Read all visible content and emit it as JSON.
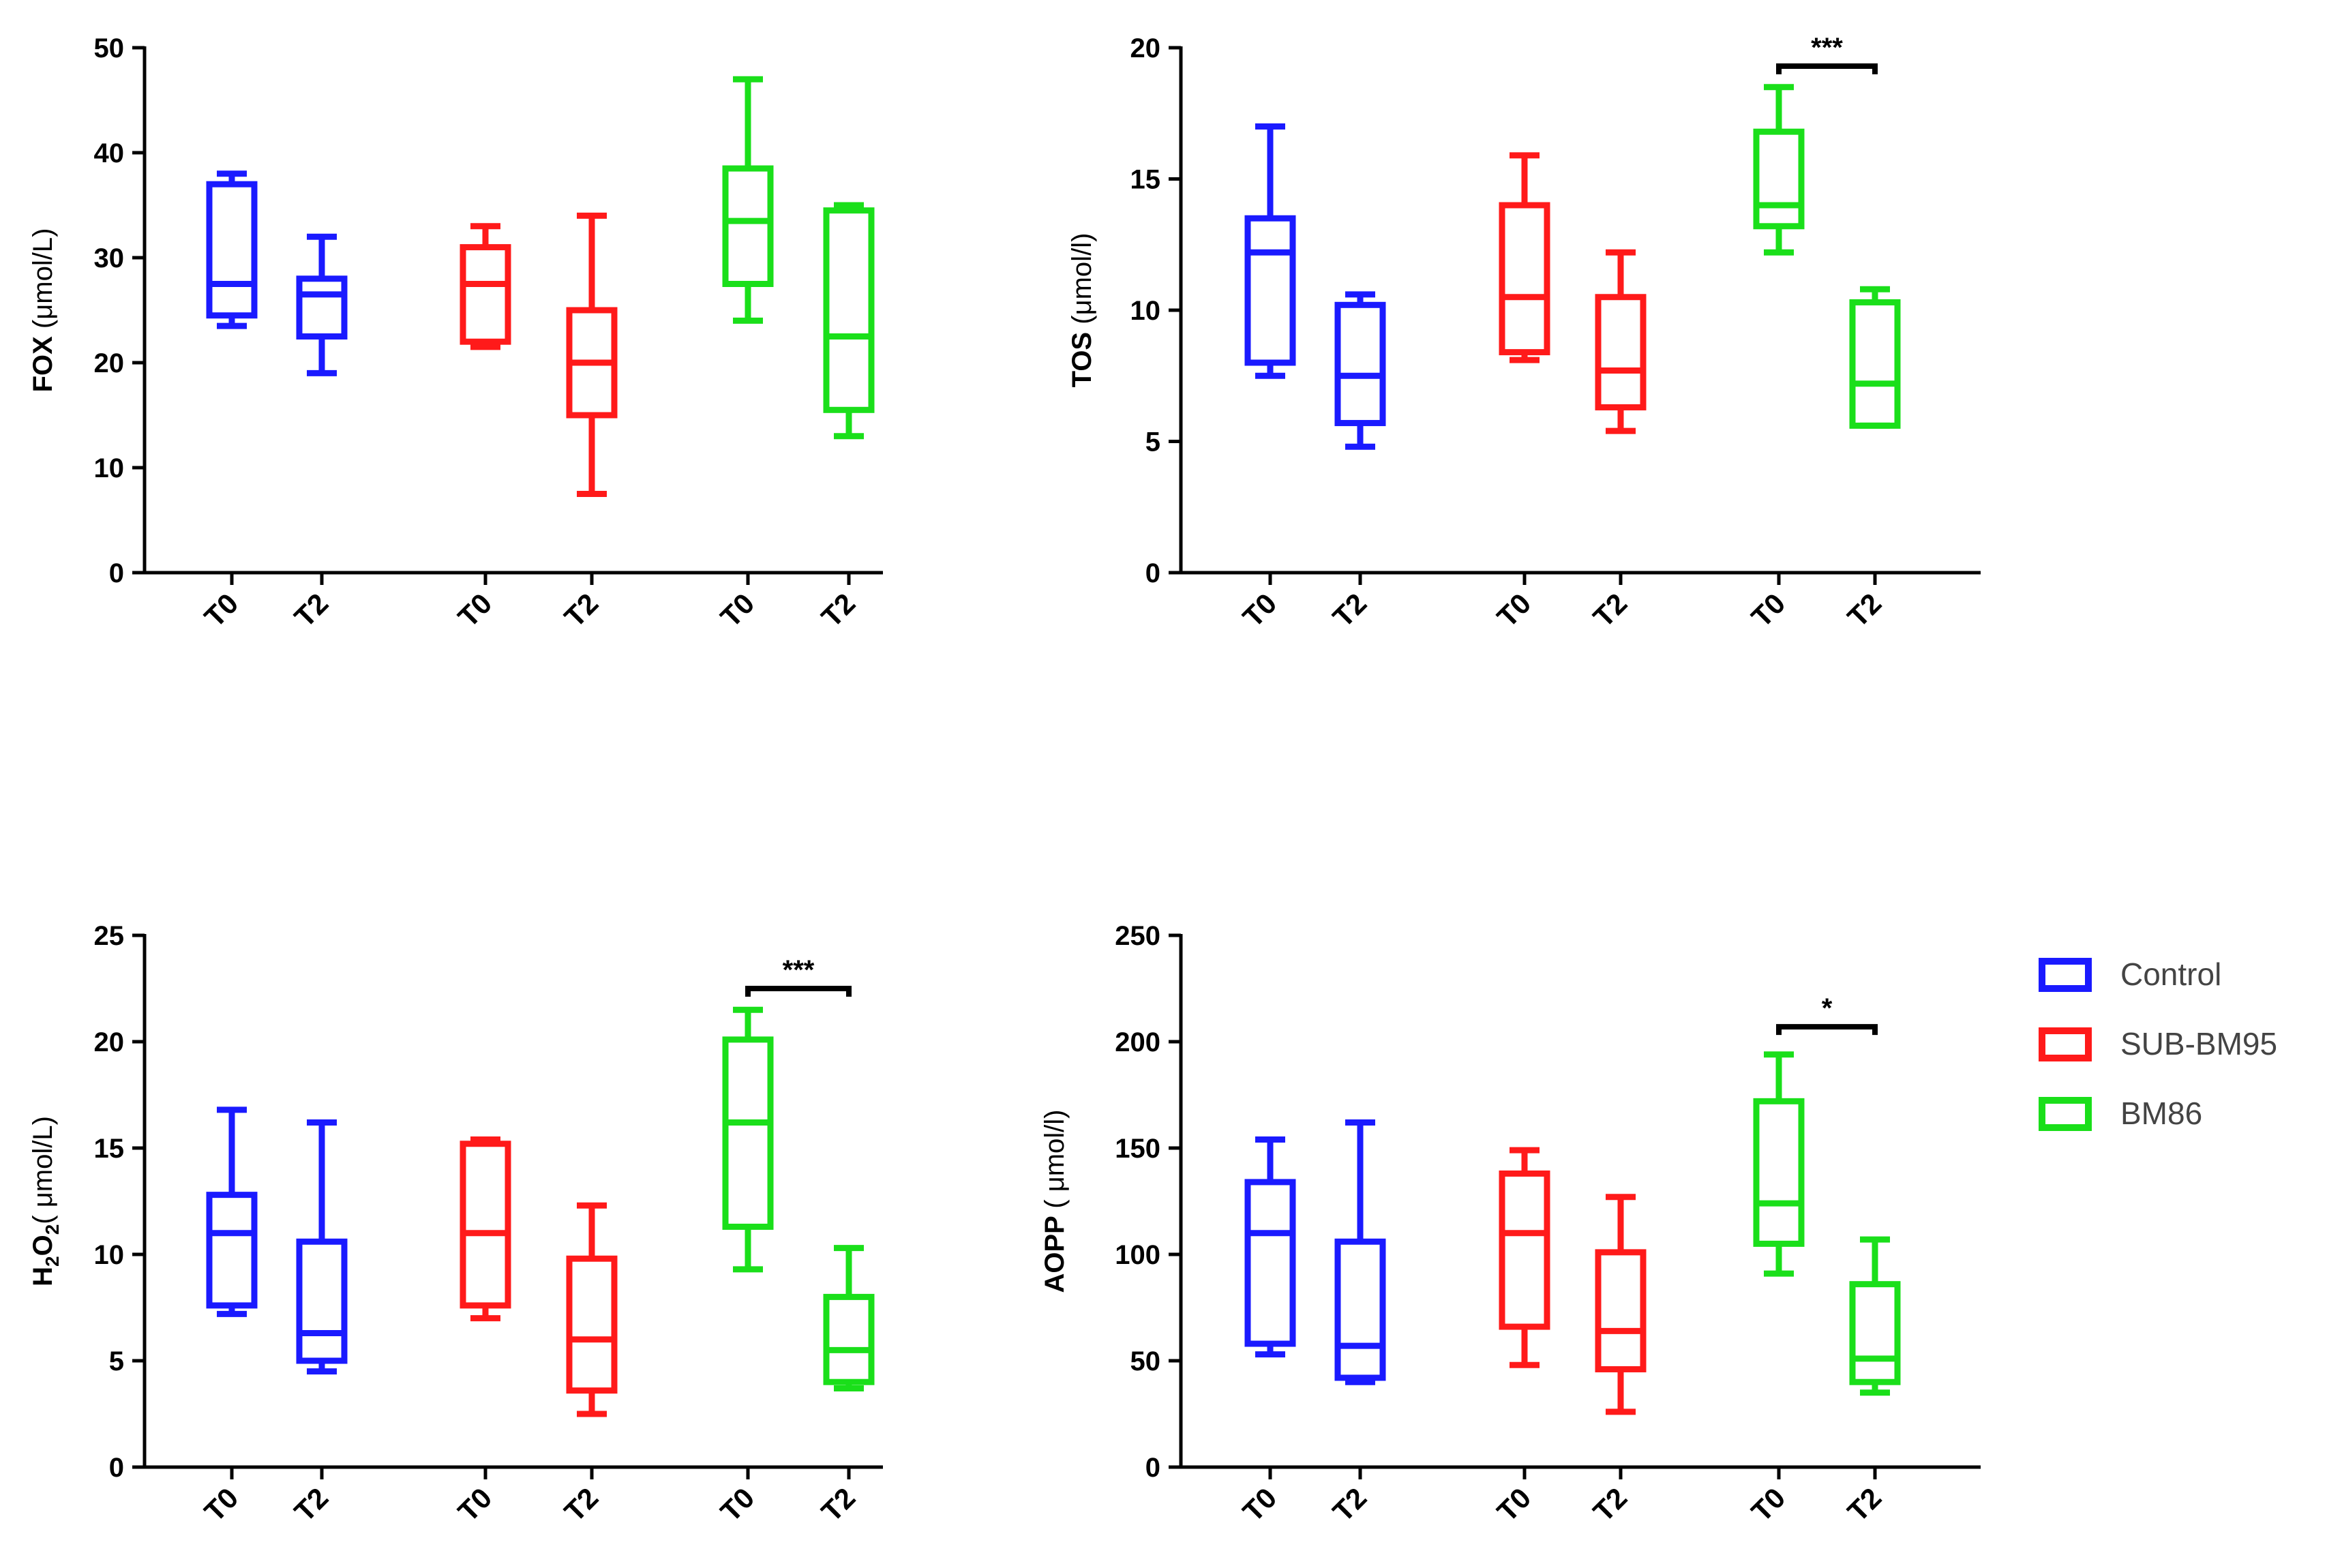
{
  "legend": {
    "items": [
      {
        "label": "Control",
        "color": "#1a1aff"
      },
      {
        "label": "SUB-BM95",
        "color": "#ff1a1a"
      },
      {
        "label": "BM86",
        "color": "#1adf1a"
      }
    ]
  },
  "chart_data": [
    {
      "type": "box",
      "id": "fox",
      "ylabel_main": "FOX",
      "ylabel_unit": "(μmol/L)",
      "ylim": [
        0,
        50
      ],
      "yticks": [
        "0",
        "10",
        "20",
        "30",
        "40",
        "50"
      ],
      "categories": [
        "T0",
        "T2",
        "T0",
        "T2",
        "T0",
        "T2"
      ],
      "groups": [
        "Control",
        "Control",
        "SUB-BM95",
        "SUB-BM95",
        "BM86",
        "BM86"
      ],
      "boxes": [
        {
          "min": 23.5,
          "q1": 24.5,
          "median": 27.5,
          "q3": 37,
          "max": 38
        },
        {
          "min": 19,
          "q1": 22.5,
          "median": 26.5,
          "q3": 28,
          "max": 32
        },
        {
          "min": 21.5,
          "q1": 22,
          "median": 27.5,
          "q3": 31,
          "max": 33
        },
        {
          "min": 7.5,
          "q1": 15,
          "median": 20,
          "q3": 25,
          "max": 34
        },
        {
          "min": 24,
          "q1": 27.5,
          "median": 33.5,
          "q3": 38.5,
          "max": 47
        },
        {
          "min": 13,
          "q1": 15.5,
          "median": 22.5,
          "q3": 34.5,
          "max": 35
        }
      ],
      "significance": []
    },
    {
      "type": "box",
      "id": "tos",
      "ylabel_main": "TOS",
      "ylabel_unit": "(μmol/l)",
      "ylim": [
        0,
        20
      ],
      "yticks": [
        "0",
        "5",
        "10",
        "15",
        "20"
      ],
      "categories": [
        "T0",
        "T2",
        "T0",
        "T2",
        "T0",
        "T2"
      ],
      "groups": [
        "Control",
        "Control",
        "SUB-BM95",
        "SUB-BM95",
        "BM86",
        "BM86"
      ],
      "boxes": [
        {
          "min": 7.5,
          "q1": 8,
          "median": 12.2,
          "q3": 13.5,
          "max": 17
        },
        {
          "min": 4.8,
          "q1": 5.7,
          "median": 7.5,
          "q3": 10.2,
          "max": 10.6
        },
        {
          "min": 8.1,
          "q1": 8.4,
          "median": 10.5,
          "q3": 14,
          "max": 15.9
        },
        {
          "min": 5.4,
          "q1": 6.3,
          "median": 7.7,
          "q3": 10.5,
          "max": 12.2
        },
        {
          "min": 12.2,
          "q1": 13.2,
          "median": 14,
          "q3": 16.8,
          "max": 18.5
        },
        {
          "min": 5.6,
          "q1": 5.6,
          "median": 7.2,
          "q3": 10.3,
          "max": 10.8
        }
      ],
      "significance": [
        {
          "from": 4,
          "to": 5,
          "y": 19.3,
          "label": "***"
        }
      ]
    },
    {
      "type": "box",
      "id": "h2o2",
      "ylabel_main": "H",
      "ylabel_sub1": "2",
      "ylabel_mid": "O",
      "ylabel_sub2": "2",
      "ylabel_unit": "( μmol/L)",
      "ylim": [
        0,
        25
      ],
      "yticks": [
        "0",
        "5",
        "10",
        "15",
        "20",
        "25"
      ],
      "categories": [
        "T0",
        "T2",
        "T0",
        "T2",
        "T0",
        "T2"
      ],
      "groups": [
        "Control",
        "Control",
        "SUB-BM95",
        "SUB-BM95",
        "BM86",
        "BM86"
      ],
      "boxes": [
        {
          "min": 7.2,
          "q1": 7.6,
          "median": 11,
          "q3": 12.8,
          "max": 16.8
        },
        {
          "min": 4.5,
          "q1": 5,
          "median": 6.3,
          "q3": 10.6,
          "max": 16.2
        },
        {
          "min": 7,
          "q1": 7.6,
          "median": 11,
          "q3": 15.2,
          "max": 15.4
        },
        {
          "min": 2.5,
          "q1": 3.6,
          "median": 6,
          "q3": 9.8,
          "max": 12.3
        },
        {
          "min": 9.3,
          "q1": 11.3,
          "median": 16.2,
          "q3": 20.1,
          "max": 21.5
        },
        {
          "min": 3.7,
          "q1": 4,
          "median": 5.5,
          "q3": 8,
          "max": 10.3
        }
      ],
      "significance": [
        {
          "from": 4,
          "to": 5,
          "y": 22.5,
          "label": "***"
        }
      ]
    },
    {
      "type": "box",
      "id": "aopp",
      "ylabel_main": "AOPP",
      "ylabel_unit": "( μmol/l)",
      "ylim": [
        0,
        250
      ],
      "yticks": [
        "0",
        "50",
        "100",
        "150",
        "200",
        "250"
      ],
      "categories": [
        "T0",
        "T2",
        "T0",
        "T2",
        "T0",
        "T2"
      ],
      "groups": [
        "Control",
        "Control",
        "SUB-BM95",
        "SUB-BM95",
        "BM86",
        "BM86"
      ],
      "boxes": [
        {
          "min": 53,
          "q1": 58,
          "median": 110,
          "q3": 134,
          "max": 154
        },
        {
          "min": 40,
          "q1": 42,
          "median": 57,
          "q3": 106,
          "max": 162
        },
        {
          "min": 48,
          "q1": 66,
          "median": 110,
          "q3": 138,
          "max": 149
        },
        {
          "min": 26,
          "q1": 46,
          "median": 64,
          "q3": 101,
          "max": 127
        },
        {
          "min": 91,
          "q1": 105,
          "median": 124,
          "q3": 172,
          "max": 194
        },
        {
          "min": 35,
          "q1": 40,
          "median": 51,
          "q3": 86,
          "max": 107
        }
      ],
      "significance": [
        {
          "from": 4,
          "to": 5,
          "y": 207,
          "label": "*"
        }
      ]
    }
  ]
}
